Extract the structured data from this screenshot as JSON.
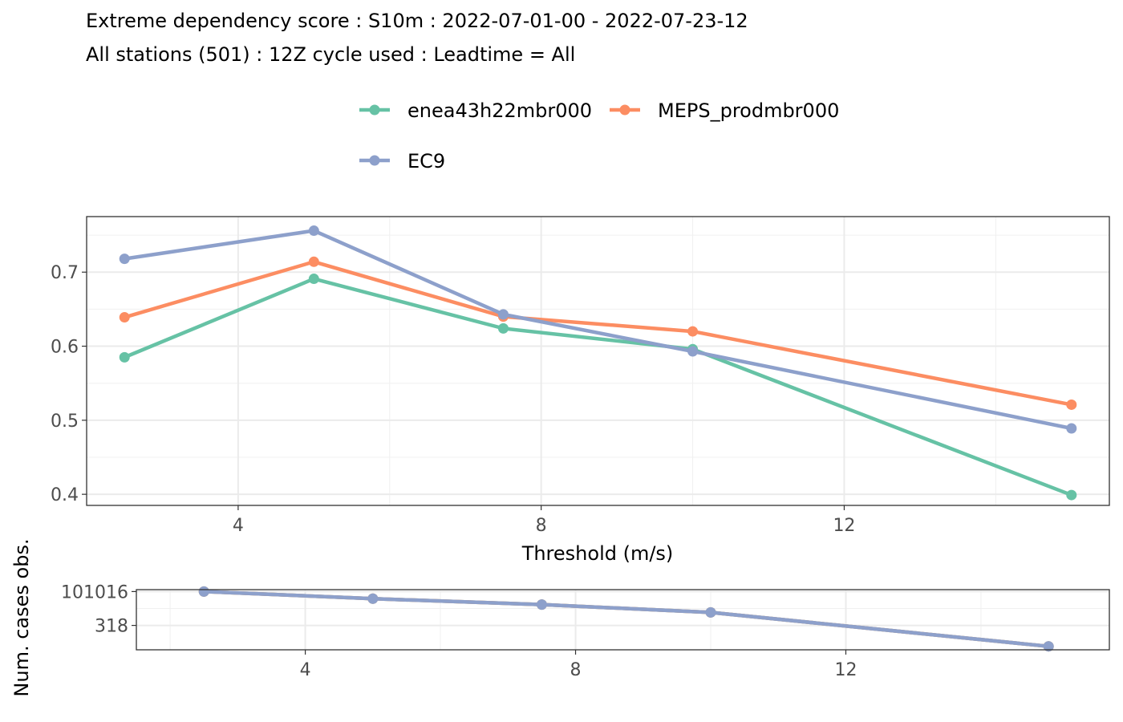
{
  "chart_data": [
    {
      "type": "line",
      "title": "Extreme dependency score : S10m : 2022-07-01-00 - 2022-07-23-12",
      "subtitle": "All stations (501) : 12Z cycle used : Leadtime = All",
      "xlabel": "Threshold (m/s)",
      "ylabel": "",
      "xlim": [
        2,
        15.5
      ],
      "ylim": [
        0.385,
        0.775
      ],
      "x_ticks": [
        4,
        8,
        12
      ],
      "y_ticks": [
        0.4,
        0.5,
        0.6,
        0.7
      ],
      "grid": true,
      "legend_position": "top",
      "x": [
        2.5,
        5,
        7.5,
        10,
        15
      ],
      "series": [
        {
          "name": "enea43h22mbr000",
          "color": "#66c2a5",
          "values": [
            0.585,
            0.691,
            0.624,
            0.596,
            0.399
          ]
        },
        {
          "name": "MEPS_prodmbr000",
          "color": "#fc8d62",
          "values": [
            0.639,
            0.714,
            0.64,
            0.62,
            0.521
          ]
        },
        {
          "name": "EC9",
          "color": "#8da0cb",
          "values": [
            0.718,
            0.756,
            0.643,
            0.593,
            0.489
          ]
        }
      ]
    },
    {
      "type": "line",
      "title": "",
      "xlabel": "",
      "ylabel": "Num. cases obs.",
      "xlim": [
        1.5,
        15.9
      ],
      "y_scale": "log",
      "ylim": [
        5,
        140000
      ],
      "x_ticks": [
        4,
        8,
        12
      ],
      "y_ticks": [
        318,
        101016
      ],
      "y_tick_labels": [
        "318",
        "101016"
      ],
      "grid": true,
      "x": [
        2.5,
        5,
        7.5,
        10,
        15
      ],
      "series": [
        {
          "color": "#66c2a5",
          "values": [
            101016,
            30000,
            11000,
            2900,
            9
          ]
        },
        {
          "color": "#fc8d62",
          "values": [
            101016,
            30000,
            11000,
            2900,
            9
          ]
        },
        {
          "color": "#8da0cb",
          "values": [
            101016,
            30000,
            11000,
            2900,
            9
          ]
        }
      ]
    }
  ]
}
